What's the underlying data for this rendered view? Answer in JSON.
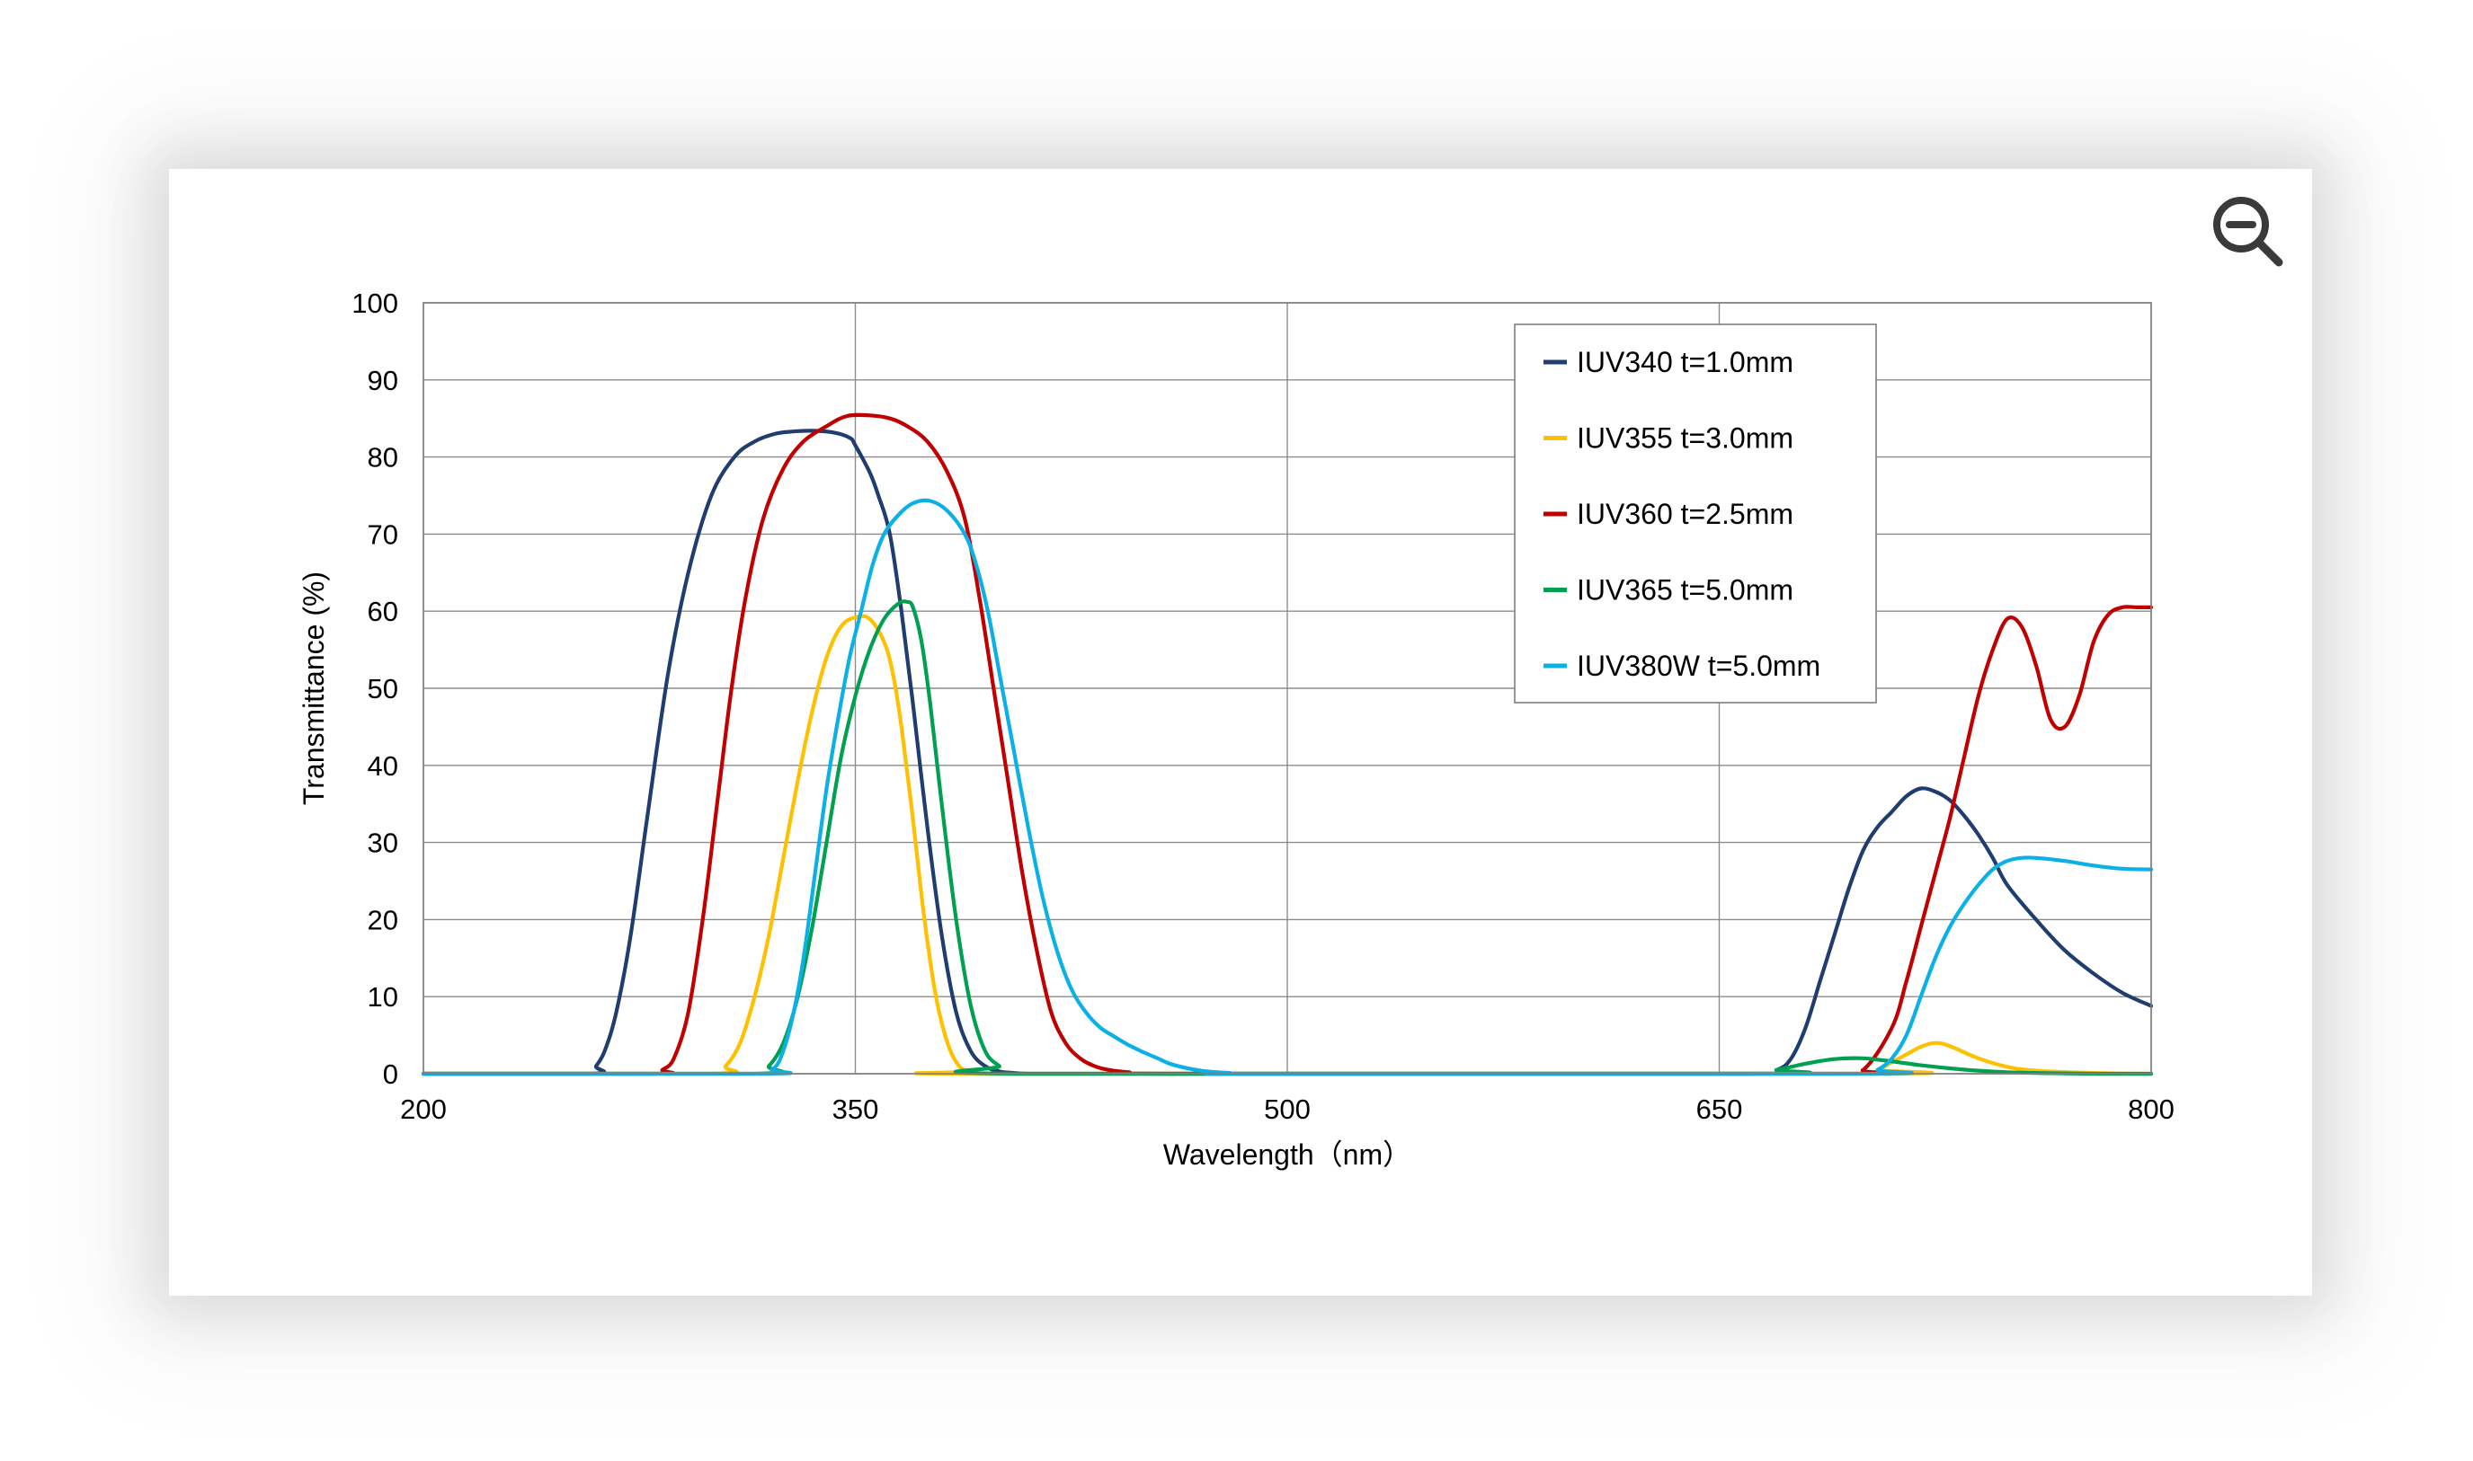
{
  "zoom": {
    "icon": "zoom-out-icon"
  },
  "chart_data": {
    "type": "line",
    "xlabel": "Wavelength（nm）",
    "ylabel": "Transmittance (%)",
    "xlim": [
      200,
      800
    ],
    "ylim": [
      0,
      100
    ],
    "x_ticks": [
      "200",
      "350",
      "500",
      "650",
      "800"
    ],
    "y_ticks": [
      "0",
      "10",
      "20",
      "30",
      "40",
      "50",
      "60",
      "70",
      "80",
      "90",
      "100"
    ],
    "grid": true,
    "legend_position": "top-right",
    "series": [
      {
        "name": "IUV340  t=1.0mm",
        "color": "#1f3d6e",
        "x": [
          200,
          258,
          260,
          263,
          267,
          272,
          278,
          285,
          292,
          300,
          308,
          315,
          322,
          328,
          335,
          342,
          348,
          350,
          355,
          358,
          362,
          366,
          370,
          375,
          380,
          385,
          390,
          395,
          400,
          405,
          410,
          420,
          660,
          670,
          675,
          680,
          685,
          690,
          695,
          700,
          705,
          710,
          715,
          720,
          725,
          730,
          735,
          740,
          745,
          750,
          760,
          770,
          780,
          790,
          800
        ],
        "y": [
          0,
          0,
          1,
          3,
          8,
          18,
          34,
          52,
          65,
          75,
          80,
          82,
          83,
          83.3,
          83.4,
          83.2,
          82.5,
          81.5,
          78,
          75,
          70,
          60,
          48,
          32,
          18,
          8,
          3,
          1,
          0.3,
          0.1,
          0,
          0,
          0,
          0.5,
          2,
          6,
          12,
          18,
          24,
          29,
          32,
          34,
          36,
          37,
          36.6,
          35.5,
          33.5,
          31,
          28,
          24.5,
          20,
          16,
          13,
          10.5,
          8.8
        ]
      },
      {
        "name": "IUV355  t=3.0mm",
        "color": "#ffc000",
        "x": [
          200,
          300,
          305,
          310,
          315,
          320,
          325,
          330,
          335,
          340,
          345,
          350,
          355,
          360,
          363,
          366,
          370,
          374,
          378,
          382,
          386,
          390,
          395,
          700,
          705,
          710,
          715,
          720,
          725,
          730,
          740,
          750,
          760,
          780,
          800
        ],
        "y": [
          0,
          0,
          1,
          4,
          10,
          18,
          28,
          38,
          47,
          54,
          58,
          59.2,
          59,
          56,
          52,
          45,
          33,
          20,
          10,
          4,
          1,
          0.3,
          0,
          0,
          0.5,
          1.5,
          2.5,
          3.5,
          4,
          3.6,
          2,
          0.9,
          0.4,
          0.1,
          0
        ],
        "note": ""
      },
      {
        "name": "IUV360  t=2.5mm",
        "color": "#c00000",
        "x": [
          200,
          280,
          283,
          287,
          292,
          297,
          302,
          307,
          312,
          318,
          325,
          332,
          340,
          347,
          355,
          362,
          368,
          375,
          382,
          388,
          393,
          398,
          403,
          408,
          413,
          418,
          423,
          428,
          433,
          438,
          445,
          460,
          690,
          700,
          710,
          715,
          720,
          725,
          730,
          735,
          740,
          745,
          750,
          755,
          760,
          765,
          770,
          775,
          780,
          785,
          790,
          795,
          800
        ],
        "y": [
          0,
          0,
          0.5,
          2,
          8,
          20,
          35,
          50,
          62,
          72,
          78.5,
          82,
          84,
          85.3,
          85.4,
          85,
          84,
          82,
          78,
          72,
          62,
          50,
          38,
          26,
          16,
          8,
          4,
          2,
          1,
          0.5,
          0.2,
          0,
          0,
          0.5,
          6,
          12,
          19,
          26,
          33,
          41,
          49,
          55,
          59,
          58,
          53,
          46,
          45,
          49,
          56,
          59.5,
          60.5,
          60.5,
          60.5
        ]
      },
      {
        "name": "IUV365  t=5.0mm",
        "color": "#00a050",
        "x": [
          200,
          315,
          320,
          325,
          330,
          335,
          340,
          345,
          350,
          355,
          360,
          365,
          368,
          370,
          373,
          376,
          380,
          385,
          390,
          395,
          400,
          405,
          660,
          670,
          680,
          690,
          700,
          710,
          720,
          730,
          740,
          750,
          760,
          770,
          780,
          800
        ],
        "y": [
          0,
          0,
          1,
          4,
          10,
          19,
          30,
          41,
          49,
          55,
          59,
          61,
          61.2,
          60.5,
          56,
          48,
          35,
          20,
          9,
          3,
          1,
          0,
          0,
          0.5,
          1.3,
          1.9,
          2,
          1.6,
          1.1,
          0.7,
          0.4,
          0.2,
          0.1,
          0.05,
          0,
          0
        ],
        "note": ""
      },
      {
        "name": "IUV380W  t=5.0mm",
        "color": "#0ab0e6",
        "x": [
          200,
          318,
          321,
          324,
          328,
          332,
          336,
          340,
          344,
          348,
          352,
          356,
          360,
          365,
          370,
          376,
          382,
          388,
          392,
          396,
          400,
          405,
          410,
          415,
          420,
          425,
          430,
          435,
          440,
          445,
          450,
          455,
          460,
          470,
          480,
          490,
          700,
          705,
          710,
          715,
          720,
          725,
          730,
          735,
          740,
          745,
          750,
          755,
          760,
          770,
          780,
          790,
          800
        ],
        "y": [
          0,
          0,
          0.5,
          2,
          7,
          15,
          26,
          37,
          46,
          54,
          60,
          66,
          70,
          72.5,
          74,
          74.3,
          73,
          70,
          66,
          60,
          52,
          42,
          32,
          23,
          16,
          11,
          8,
          6,
          4.8,
          3.7,
          2.8,
          2,
          1.2,
          0.4,
          0.1,
          0,
          0,
          0.5,
          2,
          5,
          10,
          15,
          19,
          22,
          24.5,
          26.5,
          27.6,
          28,
          28,
          27.6,
          27,
          26.6,
          26.5
        ]
      }
    ]
  }
}
